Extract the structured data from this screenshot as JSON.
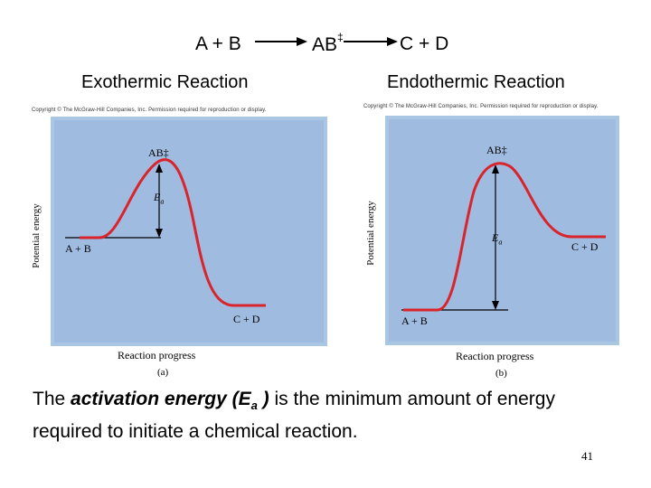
{
  "equation": {
    "reactants": "A + B",
    "transition_state": "AB",
    "transition_mark": "‡",
    "products": "C + D"
  },
  "headings": {
    "left": "Exothermic Reaction",
    "right": "Endothermic Reaction"
  },
  "copyright": "Copyright © The McGraw-Hill Companies, Inc. Permission required for reproduction or display.",
  "diagrams": {
    "ylabel": "Potential energy",
    "xlabel": "Reaction progress",
    "ts_label": "AB‡",
    "ea_main": "E",
    "ea_sub": "a",
    "reactant_label": "A + B",
    "product_label": "C + D",
    "left_caption": "(a)",
    "right_caption": "(b)"
  },
  "description": {
    "prefix": "The ",
    "emphasis": "activation energy (E",
    "emphasis_sub": "a",
    "emphasis_end": " )",
    "suffix": " is the minimum amount of energy required to initiate a chemical reaction."
  },
  "page_number": "41",
  "colors": {
    "panel_border": "#a9c6e2",
    "panel_fill": "#9fbbe0",
    "curve": "#d9242b"
  }
}
